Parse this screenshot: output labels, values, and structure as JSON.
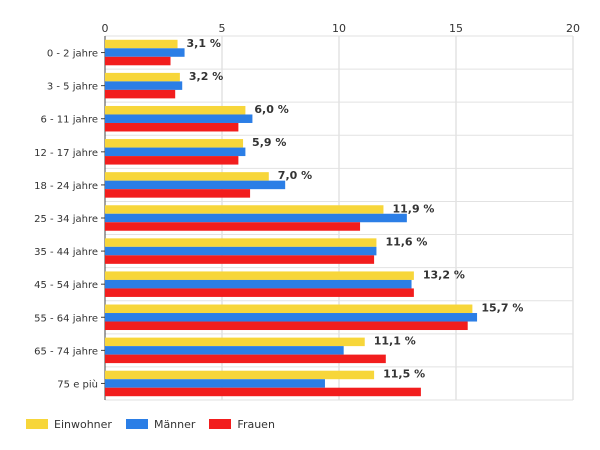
{
  "chart_data": {
    "type": "bar",
    "orientation": "horizontal",
    "categories": [
      "0 - 2 jahre",
      "3 - 5 jahre",
      "6 - 11 jahre",
      "12 - 17 jahre",
      "18 - 24 jahre",
      "25 - 34 jahre",
      "35 - 44 jahre",
      "45 - 54 jahre",
      "55 - 64 jahre",
      "65 - 74 jahre",
      "75 e più"
    ],
    "series": [
      {
        "name": "Einwohner",
        "color": "#f7d63a",
        "values": [
          3.1,
          3.2,
          6.0,
          5.9,
          7.0,
          11.9,
          11.6,
          13.2,
          15.7,
          11.1,
          11.5
        ]
      },
      {
        "name": "Männer",
        "color": "#2b7ee6",
        "values": [
          3.4,
          3.3,
          6.3,
          6.0,
          7.7,
          12.9,
          11.6,
          13.1,
          15.9,
          10.2,
          9.4
        ]
      },
      {
        "name": "Frauen",
        "color": "#f21d1d",
        "values": [
          2.8,
          3.0,
          5.7,
          5.7,
          6.2,
          10.9,
          11.5,
          13.2,
          15.5,
          12.0,
          13.5
        ]
      }
    ],
    "data_labels": [
      "3,1 %",
      "3,2 %",
      "6,0 %",
      "5,9 %",
      "7,0 %",
      "11,9 %",
      "11,6 %",
      "13,2 %",
      "15,7 %",
      "11,1 %",
      "11,5 %"
    ],
    "xlim": [
      0,
      20
    ],
    "xticks": [
      "0",
      "5",
      "10",
      "15",
      "20"
    ],
    "axis_position": "top",
    "grid": true,
    "legend_position": "bottom-left",
    "title": "",
    "xlabel": "",
    "ylabel": ""
  }
}
